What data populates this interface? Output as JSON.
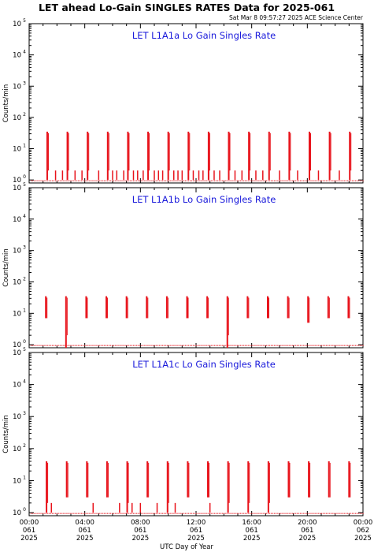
{
  "title": "LET ahead Lo-Gain SINGLES RATES Data for 2025-061",
  "timestamp": "Sat Mar  8 09:57:27 2025 ACE Science Center",
  "xlabel": "UTC Day of Year",
  "ylabel": "Counts/min",
  "colors": {
    "data": "#e8131b",
    "panel_title": "#1a1adb",
    "axes": "#000000"
  },
  "chart_data": [
    {
      "type": "scatter",
      "title": "LET L1A1a Lo Gain Singles Rate",
      "ylabel": "Counts/min",
      "yscale": "log",
      "ylim": [
        0.8,
        100000
      ],
      "xlim": [
        0,
        24
      ],
      "x_unit": "hours UTC",
      "bursts": [
        {
          "x": 1.3,
          "y_min": 1,
          "y_max": 35
        },
        {
          "x": 2.75,
          "y_min": 1,
          "y_max": 35
        },
        {
          "x": 4.2,
          "y_min": 1,
          "y_max": 35
        },
        {
          "x": 5.65,
          "y_min": 1,
          "y_max": 35
        },
        {
          "x": 7.1,
          "y_min": 1,
          "y_max": 35
        },
        {
          "x": 8.55,
          "y_min": 1,
          "y_max": 35
        },
        {
          "x": 10.0,
          "y_min": 1,
          "y_max": 35
        },
        {
          "x": 11.45,
          "y_min": 1,
          "y_max": 35
        },
        {
          "x": 12.9,
          "y_min": 1,
          "y_max": 35
        },
        {
          "x": 14.35,
          "y_min": 1,
          "y_max": 35
        },
        {
          "x": 15.8,
          "y_min": 1,
          "y_max": 35
        },
        {
          "x": 17.25,
          "y_min": 1,
          "y_max": 35
        },
        {
          "x": 18.7,
          "y_min": 1,
          "y_max": 35
        },
        {
          "x": 20.15,
          "y_min": 1,
          "y_max": 35
        },
        {
          "x": 21.6,
          "y_min": 1,
          "y_max": 35
        },
        {
          "x": 23.05,
          "y_min": 1,
          "y_max": 35
        }
      ],
      "spikes": [
        {
          "x": 1.9,
          "y": 2
        },
        {
          "x": 2.4,
          "y": 2
        },
        {
          "x": 3.3,
          "y": 2
        },
        {
          "x": 3.8,
          "y": 2
        },
        {
          "x": 5.0,
          "y": 2
        },
        {
          "x": 6.0,
          "y": 2
        },
        {
          "x": 6.3,
          "y": 2
        },
        {
          "x": 6.8,
          "y": 2
        },
        {
          "x": 7.5,
          "y": 2
        },
        {
          "x": 7.8,
          "y": 2
        },
        {
          "x": 8.2,
          "y": 2
        },
        {
          "x": 9.0,
          "y": 2
        },
        {
          "x": 9.3,
          "y": 2
        },
        {
          "x": 9.6,
          "y": 2
        },
        {
          "x": 10.4,
          "y": 2
        },
        {
          "x": 10.7,
          "y": 2
        },
        {
          "x": 11.0,
          "y": 2
        },
        {
          "x": 11.8,
          "y": 2
        },
        {
          "x": 12.2,
          "y": 2
        },
        {
          "x": 12.5,
          "y": 2
        },
        {
          "x": 13.3,
          "y": 2
        },
        {
          "x": 13.7,
          "y": 2
        },
        {
          "x": 14.8,
          "y": 2
        },
        {
          "x": 15.3,
          "y": 2
        },
        {
          "x": 16.3,
          "y": 2
        },
        {
          "x": 16.8,
          "y": 2
        },
        {
          "x": 18.0,
          "y": 2
        },
        {
          "x": 19.3,
          "y": 2
        },
        {
          "x": 20.8,
          "y": 2
        },
        {
          "x": 22.3,
          "y": 2
        }
      ]
    },
    {
      "type": "scatter",
      "title": "LET L1A1b Lo Gain Singles Rate",
      "ylabel": "Counts/min",
      "yscale": "log",
      "ylim": [
        0.8,
        100000
      ],
      "xlim": [
        0,
        24
      ],
      "x_unit": "hours UTC",
      "bursts": [
        {
          "x": 1.2,
          "y_min": 7,
          "y_max": 35
        },
        {
          "x": 2.65,
          "y_min": 0.8,
          "y_max": 35
        },
        {
          "x": 4.1,
          "y_min": 7,
          "y_max": 35
        },
        {
          "x": 5.55,
          "y_min": 7,
          "y_max": 35
        },
        {
          "x": 7.0,
          "y_min": 7,
          "y_max": 35
        },
        {
          "x": 8.45,
          "y_min": 7,
          "y_max": 35
        },
        {
          "x": 9.9,
          "y_min": 7,
          "y_max": 35
        },
        {
          "x": 11.35,
          "y_min": 7,
          "y_max": 35
        },
        {
          "x": 12.8,
          "y_min": 7,
          "y_max": 35
        },
        {
          "x": 14.25,
          "y_min": 0.8,
          "y_max": 35
        },
        {
          "x": 15.7,
          "y_min": 7,
          "y_max": 35
        },
        {
          "x": 17.15,
          "y_min": 7,
          "y_max": 35
        },
        {
          "x": 18.6,
          "y_min": 7,
          "y_max": 35
        },
        {
          "x": 20.05,
          "y_min": 5,
          "y_max": 35
        },
        {
          "x": 21.5,
          "y_min": 7,
          "y_max": 35
        },
        {
          "x": 22.95,
          "y_min": 7,
          "y_max": 35
        }
      ],
      "spikes": []
    },
    {
      "type": "scatter",
      "title": "LET L1A1c Lo Gain Singles Rate",
      "ylabel": "Counts/min",
      "yscale": "log",
      "ylim": [
        0.8,
        100000
      ],
      "xlim": [
        0,
        24
      ],
      "x_unit": "hours UTC",
      "xticks": [
        {
          "hour": 0,
          "time": "00:00",
          "doy": "061",
          "year": "2025"
        },
        {
          "hour": 4,
          "time": "04:00",
          "doy": "061",
          "year": "2025"
        },
        {
          "hour": 8,
          "time": "08:00",
          "doy": "061",
          "year": "2025"
        },
        {
          "hour": 12,
          "time": "12:00",
          "doy": "061",
          "year": "2025"
        },
        {
          "hour": 16,
          "time": "16:00",
          "doy": "061",
          "year": "2025"
        },
        {
          "hour": 20,
          "time": "20:00",
          "doy": "061",
          "year": "2025"
        },
        {
          "hour": 24,
          "time": "00:00",
          "doy": "062",
          "year": "2025"
        }
      ],
      "bursts": [
        {
          "x": 1.25,
          "y_min": 1,
          "y_max": 40
        },
        {
          "x": 2.7,
          "y_min": 3,
          "y_max": 40
        },
        {
          "x": 4.15,
          "y_min": 3,
          "y_max": 40
        },
        {
          "x": 5.6,
          "y_min": 3,
          "y_max": 40
        },
        {
          "x": 7.05,
          "y_min": 1,
          "y_max": 40
        },
        {
          "x": 8.5,
          "y_min": 3,
          "y_max": 40
        },
        {
          "x": 9.95,
          "y_min": 1,
          "y_max": 40
        },
        {
          "x": 11.4,
          "y_min": 3,
          "y_max": 40
        },
        {
          "x": 12.85,
          "y_min": 3,
          "y_max": 40
        },
        {
          "x": 14.3,
          "y_min": 1,
          "y_max": 40
        },
        {
          "x": 15.75,
          "y_min": 1,
          "y_max": 40
        },
        {
          "x": 17.2,
          "y_min": 1,
          "y_max": 40
        },
        {
          "x": 18.65,
          "y_min": 3,
          "y_max": 40
        },
        {
          "x": 20.1,
          "y_min": 3,
          "y_max": 40
        },
        {
          "x": 21.55,
          "y_min": 3,
          "y_max": 40
        },
        {
          "x": 23.0,
          "y_min": 3,
          "y_max": 40
        }
      ],
      "spikes": [
        {
          "x": 1.6,
          "y": 2
        },
        {
          "x": 4.6,
          "y": 2
        },
        {
          "x": 6.5,
          "y": 2
        },
        {
          "x": 7.4,
          "y": 2
        },
        {
          "x": 8.0,
          "y": 2
        },
        {
          "x": 9.2,
          "y": 2
        },
        {
          "x": 10.5,
          "y": 2
        },
        {
          "x": 13.0,
          "y": 2
        }
      ]
    }
  ]
}
